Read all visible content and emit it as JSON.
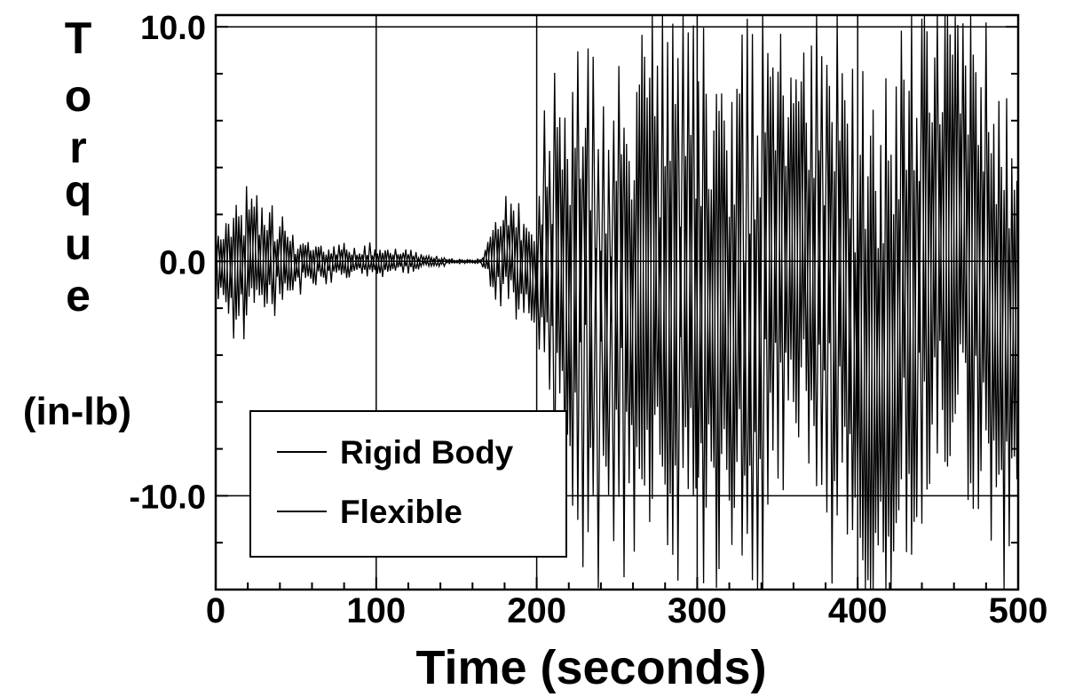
{
  "chart_data": {
    "type": "line",
    "xlabel": "Time (seconds)",
    "ylabel_letters": [
      "T",
      "o",
      "r",
      "q",
      "u",
      "e"
    ],
    "ylabel_units": "(in-lb)",
    "xlim": [
      0,
      500
    ],
    "ylim": [
      -14,
      10.5
    ],
    "x_ticks": [
      {
        "value": 0,
        "label": "0"
      },
      {
        "value": 100,
        "label": "100"
      },
      {
        "value": 200,
        "label": "200"
      },
      {
        "value": 300,
        "label": "300"
      },
      {
        "value": 400,
        "label": "400"
      },
      {
        "value": 500,
        "label": "500"
      }
    ],
    "y_ticks": [
      {
        "value": 10,
        "label": "10.0"
      },
      {
        "value": 0,
        "label": "0.0"
      },
      {
        "value": -10,
        "label": "-10.0"
      }
    ],
    "grid": true,
    "legend": {
      "placement": "lower-left",
      "entries": [
        "Rigid Body",
        "Flexible"
      ]
    },
    "series": [
      {
        "name": "Rigid Body",
        "color": "#000000",
        "envelope": {
          "x": [
            0,
            10,
            20,
            35,
            50,
            70,
            100,
            130,
            150,
            165,
            172,
            180,
            192,
            200,
            210,
            230,
            260,
            300,
            340,
            380,
            420,
            460,
            500
          ],
          "max": [
            2,
            3,
            4.2,
            2.5,
            1.3,
            1.0,
            0.8,
            0.4,
            0.1,
            0.1,
            1.5,
            3.5,
            2.5,
            3,
            9,
            9.5,
            10,
            10,
            10.5,
            10.5,
            10.5,
            10.5,
            10
          ],
          "min": [
            -2,
            -3.5,
            -4,
            -2.5,
            -1.5,
            -1.0,
            -0.8,
            -0.4,
            -0.1,
            -0.1,
            -1.5,
            -2.5,
            -3,
            -4,
            -11,
            -12,
            -12.5,
            -13,
            -13.5,
            -13.5,
            -13.5,
            -13.5,
            -13
          ]
        }
      },
      {
        "name": "Flexible",
        "color": "#000000",
        "envelope": {
          "x": [
            0,
            10,
            20,
            35,
            50,
            70,
            100,
            130,
            150,
            165,
            172,
            180,
            192,
            200,
            210,
            230,
            260,
            300,
            340,
            380,
            420,
            460,
            500
          ],
          "max": [
            1.5,
            2.5,
            3.5,
            2,
            1,
            0.8,
            0.6,
            0.3,
            0.1,
            0.1,
            1.2,
            3,
            2,
            2.5,
            8,
            8.5,
            9,
            9.5,
            10,
            10,
            10,
            10,
            9.5
          ],
          "min": [
            -1.5,
            -3,
            -3.5,
            -2,
            -1.2,
            -0.8,
            -0.6,
            -0.3,
            -0.1,
            -0.1,
            -1.2,
            -2,
            -2.5,
            -3.5,
            -10,
            -11,
            -11.5,
            -12,
            -12.5,
            -12.5,
            -12.5,
            -12.5,
            -12
          ]
        }
      }
    ]
  }
}
